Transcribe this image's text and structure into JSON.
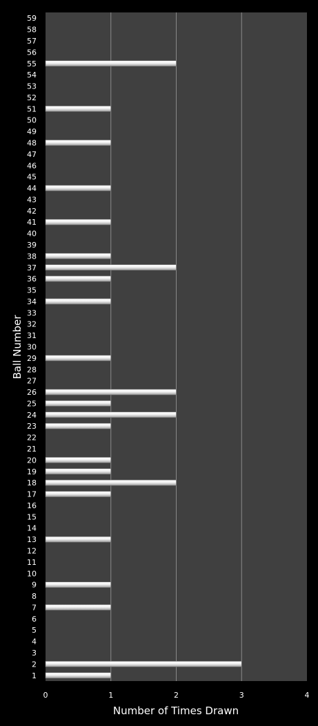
{
  "chart_data": {
    "type": "bar",
    "orientation": "horizontal",
    "title": "",
    "xlabel": "Number of Times Drawn",
    "ylabel": "Ball Number",
    "xlim": [
      0,
      4
    ],
    "x_ticks": [
      "0",
      "1",
      "2",
      "3",
      "4"
    ],
    "grid": true,
    "categories": [
      "1",
      "2",
      "3",
      "4",
      "5",
      "6",
      "7",
      "8",
      "9",
      "10",
      "11",
      "12",
      "13",
      "14",
      "15",
      "16",
      "17",
      "18",
      "19",
      "20",
      "21",
      "22",
      "23",
      "24",
      "25",
      "26",
      "27",
      "28",
      "29",
      "30",
      "31",
      "32",
      "33",
      "34",
      "35",
      "36",
      "37",
      "38",
      "39",
      "40",
      "41",
      "42",
      "43",
      "44",
      "45",
      "46",
      "47",
      "48",
      "49",
      "50",
      "51",
      "52",
      "53",
      "54",
      "55",
      "56",
      "57",
      "58",
      "59"
    ],
    "values": [
      1,
      3,
      0,
      0,
      0,
      0,
      1,
      0,
      1,
      0,
      0,
      0,
      1,
      0,
      0,
      0,
      1,
      2,
      1,
      1,
      0,
      0,
      1,
      2,
      1,
      2,
      0,
      0,
      1,
      0,
      0,
      0,
      0,
      1,
      0,
      1,
      2,
      1,
      0,
      0,
      1,
      0,
      0,
      1,
      0,
      0,
      0,
      1,
      0,
      0,
      1,
      0,
      0,
      0,
      2,
      0,
      0,
      0,
      0
    ],
    "colors": {
      "background": "#000000",
      "plot_area": "#404040",
      "gridline": "#8a8a8a",
      "bar": "#e6e6e6",
      "text": "#ffffff"
    }
  }
}
